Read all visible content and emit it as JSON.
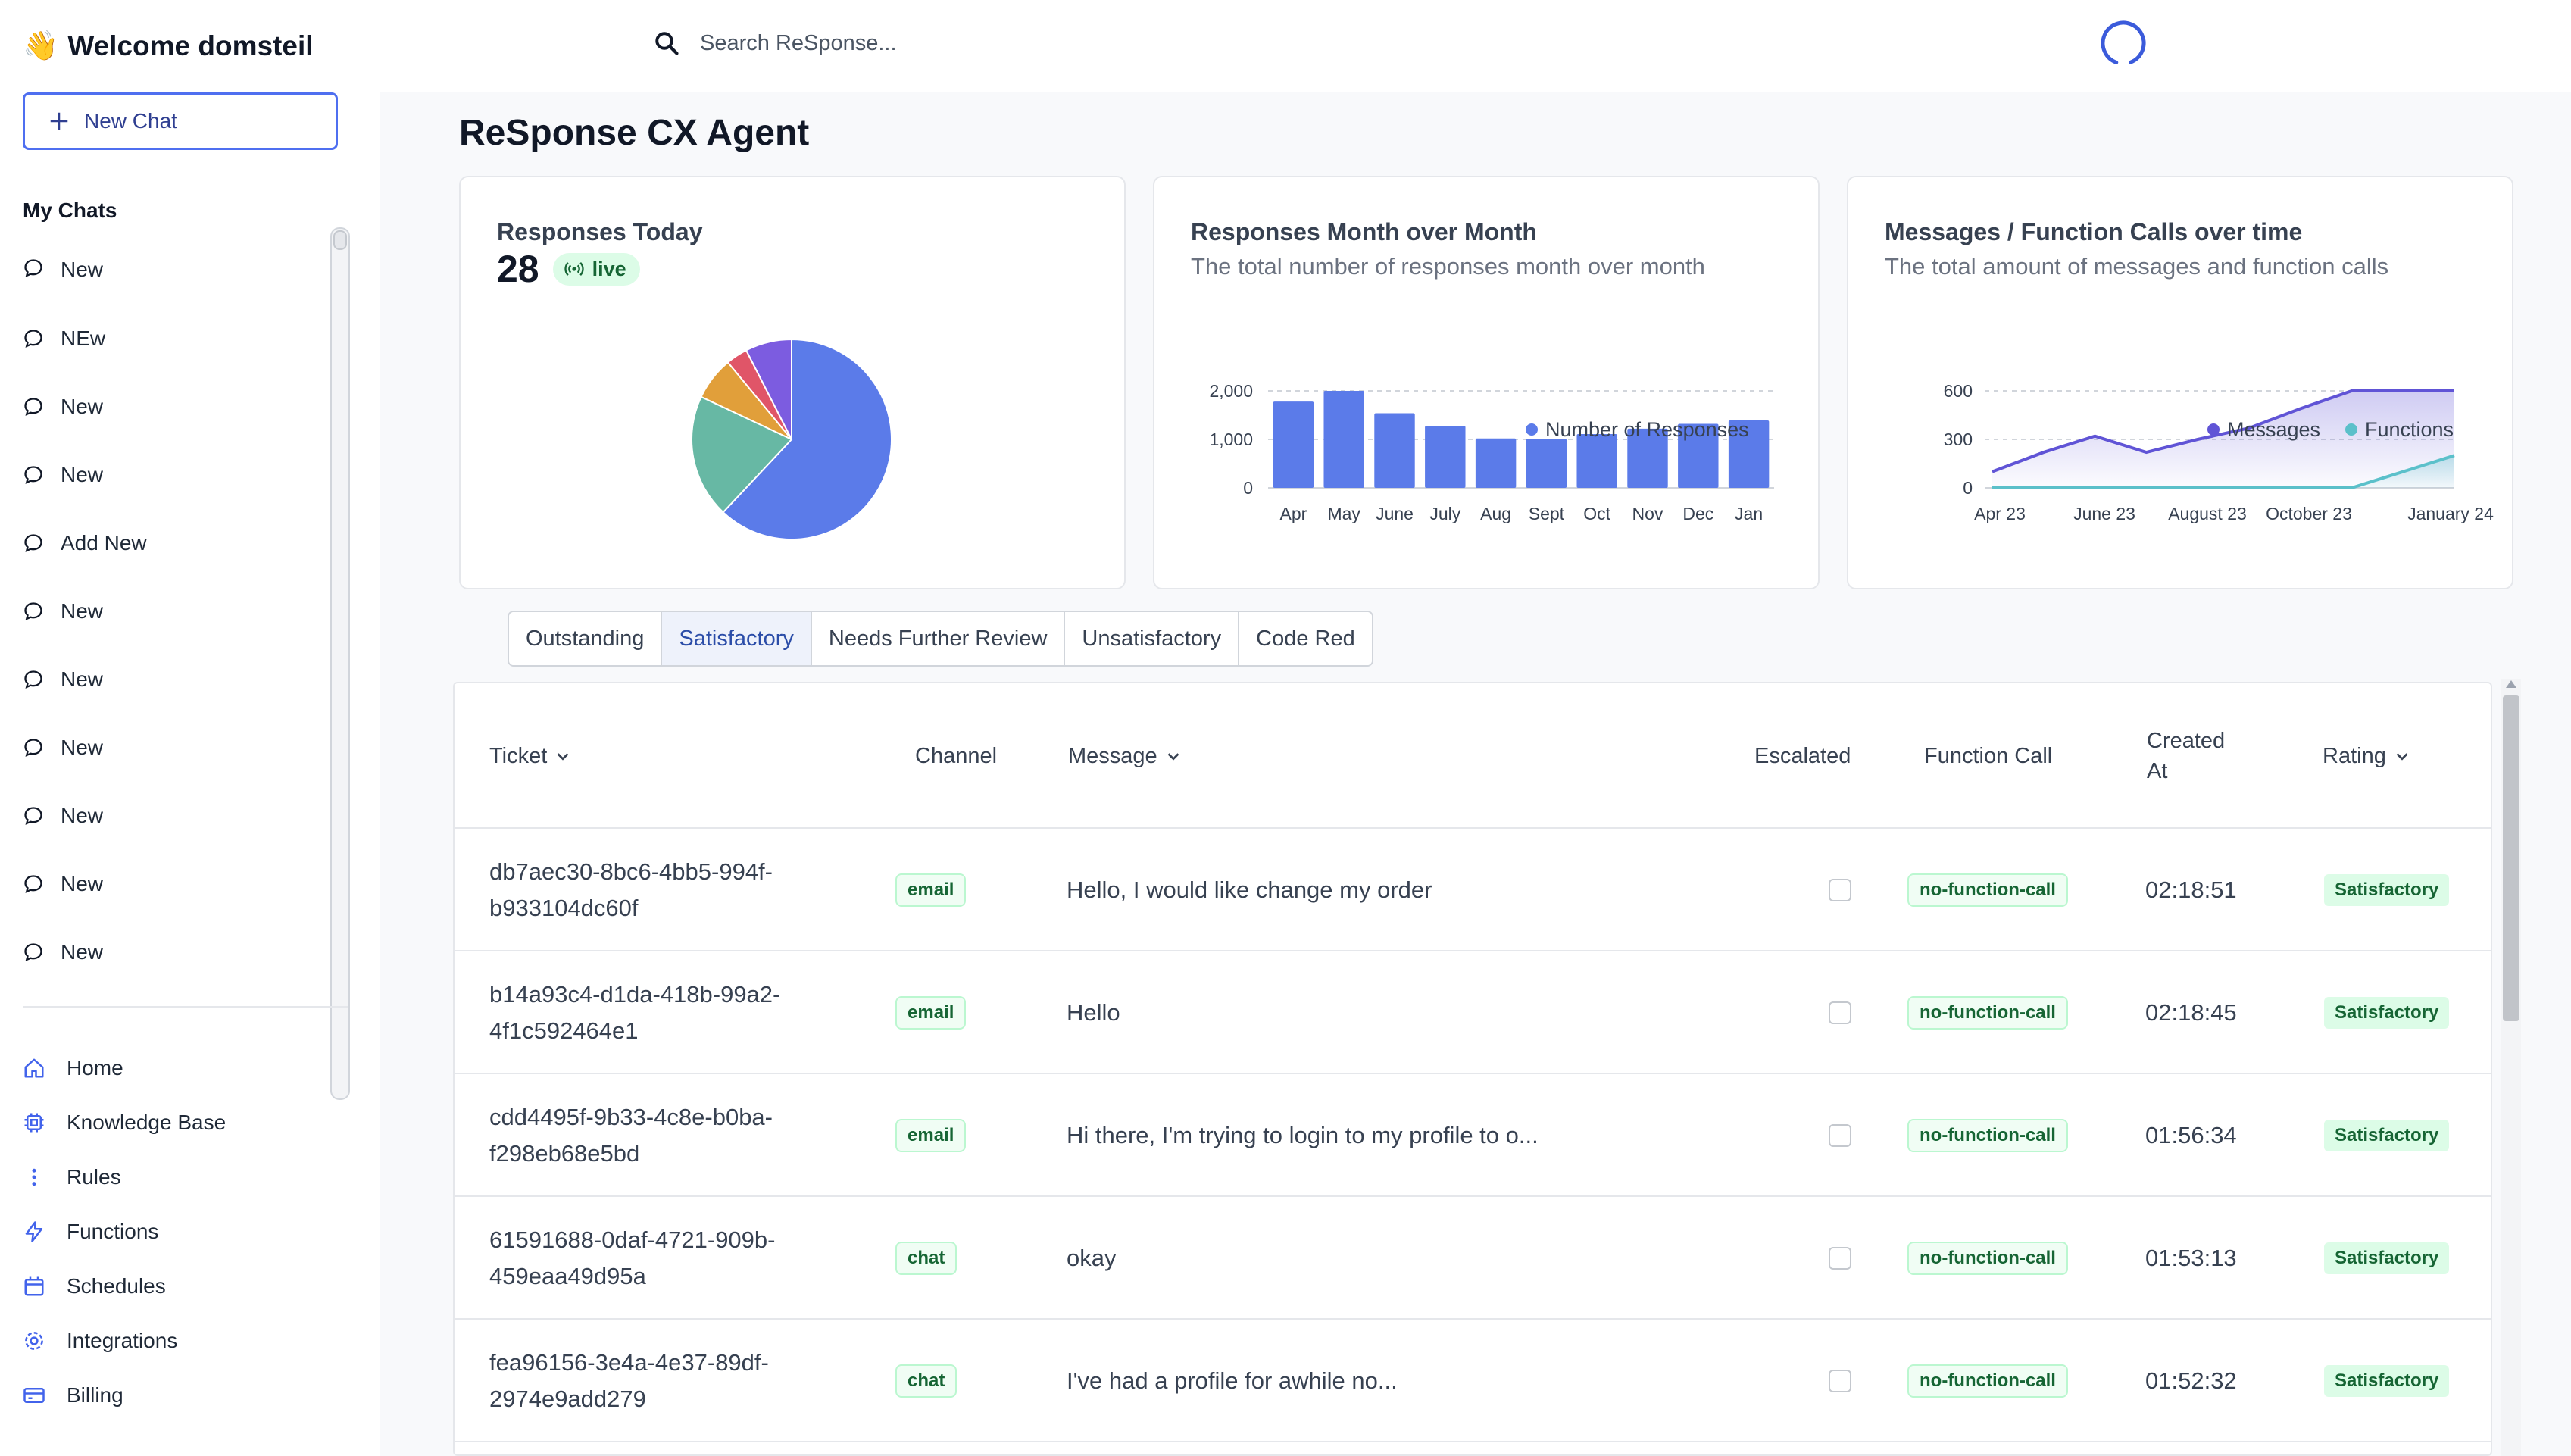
{
  "header": {
    "wave_emoji": "👋",
    "welcome": "Welcome domsteil",
    "search_placeholder": "Search ReSponse..."
  },
  "sidebar": {
    "new_chat_label": "New Chat",
    "my_chats_title": "My Chats",
    "chats": [
      "New",
      "NEw",
      "New",
      "New",
      "Add New",
      "New",
      "New",
      "New",
      "New",
      "New",
      "New"
    ],
    "nav": [
      {
        "label": "Home",
        "icon": "home-icon"
      },
      {
        "label": "Knowledge Base",
        "icon": "knowledge-base-icon"
      },
      {
        "label": "Rules",
        "icon": "rules-icon"
      },
      {
        "label": "Functions",
        "icon": "functions-icon"
      },
      {
        "label": "Schedules",
        "icon": "schedules-icon"
      },
      {
        "label": "Integrations",
        "icon": "integrations-icon"
      },
      {
        "label": "Billing",
        "icon": "billing-icon"
      }
    ]
  },
  "main": {
    "title": "ReSponse CX Agent",
    "cards": {
      "today": {
        "title": "Responses Today",
        "count": "28",
        "live_label": "live"
      },
      "monthly": {
        "title": "Responses Month over Month",
        "subtitle": "The total number of responses month over month"
      },
      "messages": {
        "title": "Messages / Function Calls over time",
        "subtitle": "The total amount of messages and function calls"
      }
    },
    "tabs": [
      "Outstanding",
      "Satisfactory",
      "Needs Further Review",
      "Unsatisfactory",
      "Code Red"
    ],
    "active_tab": "Satisfactory",
    "table": {
      "columns": {
        "ticket": "Ticket",
        "channel": "Channel",
        "message": "Message",
        "escalated": "Escalated",
        "function_call": "Function Call",
        "created_at_line1": "Created",
        "created_at_line2": "At",
        "rating": "Rating"
      },
      "rows": [
        {
          "ticket_l1": "db7aec30-8bc6-4bb5-994f-",
          "ticket_l2": "b933104dc60f",
          "channel": "email",
          "message": "Hello, I would like change my order",
          "escalated": false,
          "function_call": "no-function-call",
          "created_at": "02:18:51",
          "rating": "Satisfactory"
        },
        {
          "ticket_l1": "b14a93c4-d1da-418b-99a2-",
          "ticket_l2": "4f1c592464e1",
          "channel": "email",
          "message": "Hello",
          "escalated": false,
          "function_call": "no-function-call",
          "created_at": "02:18:45",
          "rating": "Satisfactory"
        },
        {
          "ticket_l1": "cdd4495f-9b33-4c8e-b0ba-",
          "ticket_l2": "f298eb68e5bd",
          "channel": "email",
          "message": "Hi there, I'm trying to login to my profile to o...",
          "escalated": false,
          "function_call": "no-function-call",
          "created_at": "01:56:34",
          "rating": "Satisfactory"
        },
        {
          "ticket_l1": "61591688-0daf-4721-909b-",
          "ticket_l2": "459eaa49d95a",
          "channel": "chat",
          "message": "okay",
          "escalated": false,
          "function_call": "no-function-call",
          "created_at": "01:53:13",
          "rating": "Satisfactory"
        },
        {
          "ticket_l1": "fea96156-3e4a-4e37-89df-",
          "ticket_l2": "2974e9add279",
          "channel": "chat",
          "message": "I've had a profile for awhile no...",
          "escalated": false,
          "function_call": "no-function-call",
          "created_at": "01:52:32",
          "rating": "Satisfactory"
        }
      ]
    }
  },
  "colors": {
    "primary": "#5b7be9",
    "teal": "#5bc0ca",
    "purple": "#6054d6",
    "badge_green": "#166534"
  },
  "chart_data": [
    {
      "type": "pie",
      "values": [
        62,
        20,
        7,
        3.5,
        7.5
      ],
      "colors": [
        "#5b7be9",
        "#67b8a4",
        "#e19f3a",
        "#e05568",
        "#7c5ce0"
      ]
    },
    {
      "type": "bar",
      "categories": [
        "Apr",
        "May",
        "June",
        "July",
        "Aug",
        "Sept",
        "Oct",
        "Nov",
        "Dec",
        "Jan"
      ],
      "series": [
        {
          "name": "Number of Responses",
          "values": [
            1780,
            2000,
            1540,
            1280,
            1020,
            1010,
            1110,
            1220,
            1320,
            1390
          ]
        }
      ],
      "yticks": [
        "0",
        "1,000",
        "2,000"
      ],
      "ylim": [
        0,
        2000
      ],
      "grid": true,
      "legend": "top-right"
    },
    {
      "type": "area",
      "x_ticks": [
        "Apr 23",
        "June 23",
        "August 23",
        "October 23",
        "January 24"
      ],
      "points": 10,
      "series": [
        {
          "name": "Messages",
          "values": [
            100,
            220,
            320,
            220,
            300,
            370,
            490,
            600,
            600,
            600
          ],
          "color": "#6054d6"
        },
        {
          "name": "Functions",
          "values": [
            0,
            0,
            0,
            0,
            0,
            0,
            0,
            0,
            100,
            200
          ],
          "color": "#5bc0ca"
        }
      ],
      "yticks": [
        "0",
        "300",
        "600"
      ],
      "ylim": [
        0,
        600
      ],
      "grid": true,
      "legend": "top-right"
    }
  ]
}
